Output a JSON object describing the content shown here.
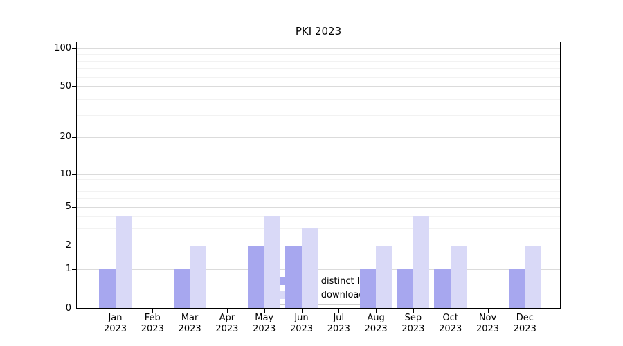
{
  "chart_data": {
    "type": "bar",
    "title": "PKI 2023",
    "categories": [
      "Jan 2023",
      "Feb 2023",
      "Mar 2023",
      "Apr 2023",
      "May 2023",
      "Jun 2023",
      "Jul 2023",
      "Aug 2023",
      "Sep 2023",
      "Oct 2023",
      "Nov 2023",
      "Dec 2023"
    ],
    "series": [
      {
        "name": "Nb of distinct IPs",
        "color": "#a7a7ef",
        "values": [
          1,
          0,
          1,
          0,
          2,
          2,
          0,
          1,
          1,
          1,
          0,
          1
        ]
      },
      {
        "name": "Nb of downloads",
        "color": "#d9d9f7",
        "values": [
          4,
          0,
          2,
          0,
          4,
          3,
          0,
          2,
          4,
          2,
          0,
          2
        ]
      }
    ],
    "yscale": "log-with-zero-baseline",
    "ylim": [
      0,
      100
    ],
    "y_ticks": [
      0,
      1,
      2,
      5,
      10,
      20,
      50,
      100
    ],
    "y_minor_ticks": [
      3,
      4,
      6,
      7,
      8,
      9,
      30,
      40,
      60,
      70,
      80,
      90
    ],
    "grid": "horizontal",
    "legend_position": "lower-center-inside"
  }
}
